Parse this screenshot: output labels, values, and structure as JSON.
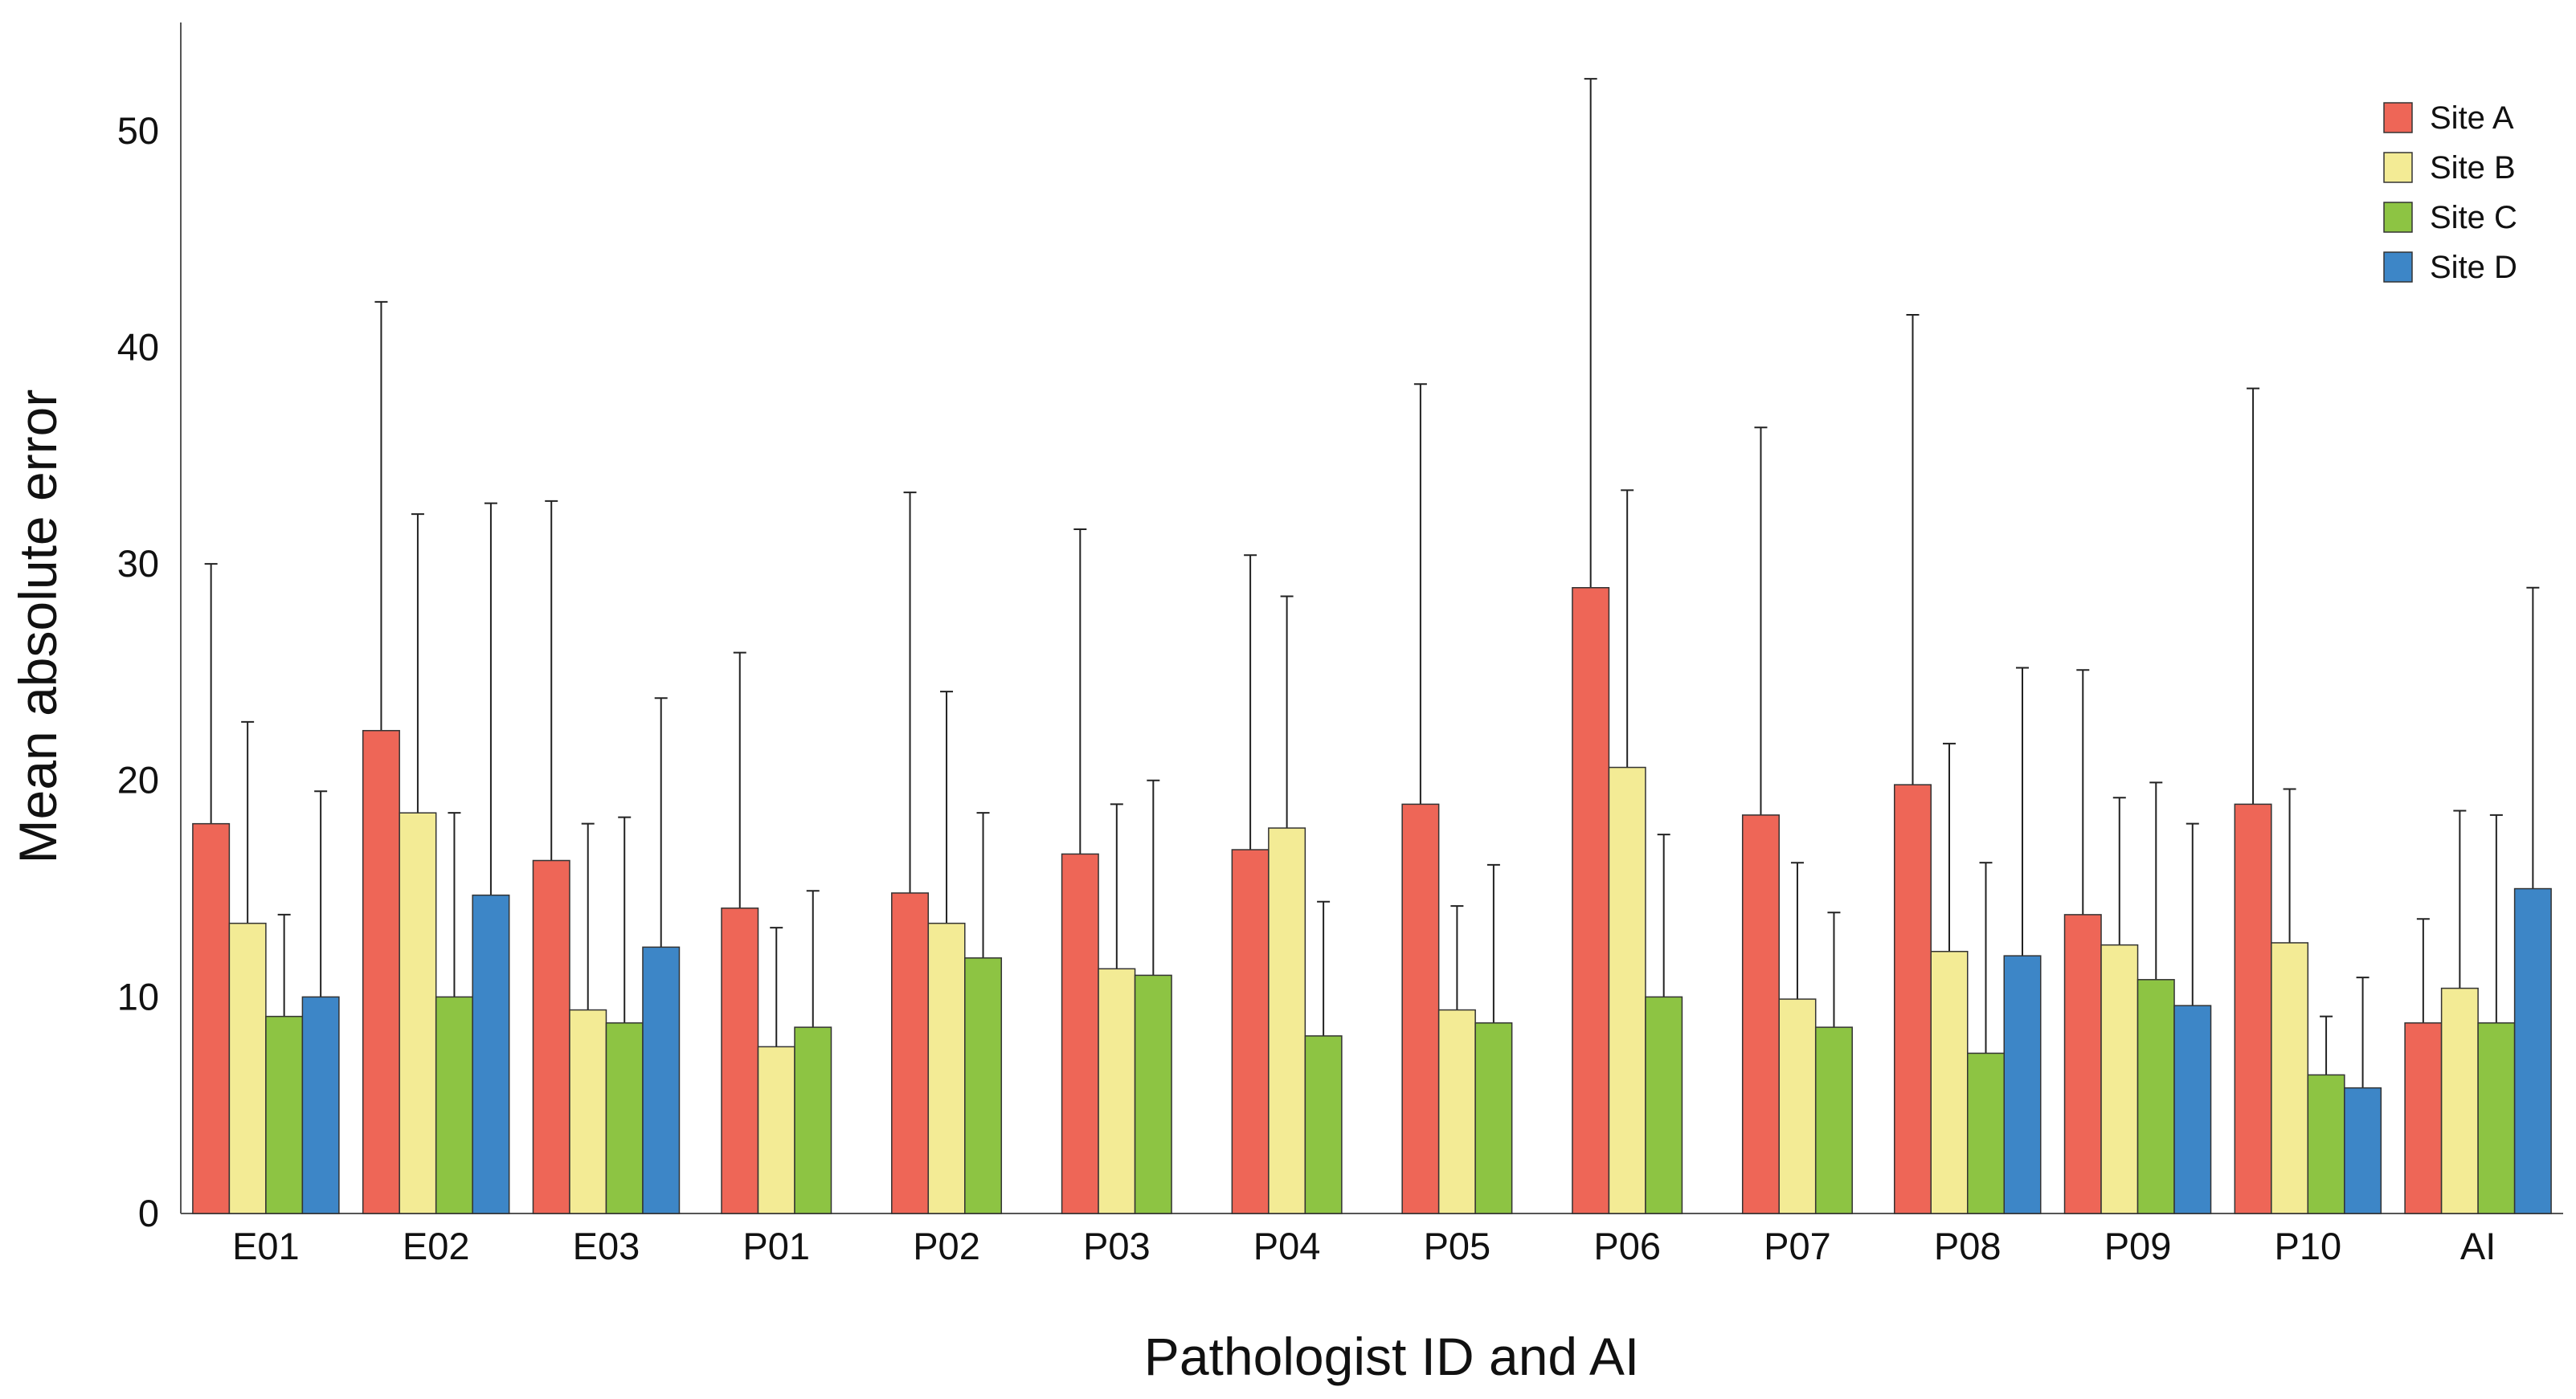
{
  "chart_data": {
    "type": "bar",
    "title": "",
    "xlabel": "Pathologist ID and AI",
    "ylabel": "Mean absolute error",
    "ylim": [
      0,
      55
    ],
    "yticks": [
      0,
      10,
      20,
      30,
      40,
      50
    ],
    "grid": false,
    "legend_position": "top-right",
    "categories": [
      "E01",
      "E02",
      "E03",
      "P01",
      "P02",
      "P03",
      "P04",
      "P05",
      "P06",
      "P07",
      "P08",
      "P09",
      "P10",
      "AI"
    ],
    "series": [
      {
        "name": "Site A",
        "color": "#ee6657",
        "values": [
          18.0,
          22.3,
          16.3,
          14.1,
          14.8,
          16.6,
          16.8,
          18.9,
          28.9,
          18.4,
          19.8,
          13.8,
          18.9,
          8.8
        ],
        "error_upper": [
          30.0,
          42.1,
          32.9,
          25.9,
          33.3,
          31.6,
          30.4,
          38.3,
          52.4,
          36.3,
          41.5,
          25.1,
          38.1,
          13.6
        ]
      },
      {
        "name": "Site B",
        "color": "#f3eb95",
        "values": [
          13.4,
          18.5,
          9.4,
          7.7,
          13.4,
          11.3,
          17.8,
          9.4,
          20.6,
          9.9,
          12.1,
          12.4,
          12.5,
          10.4
        ],
        "error_upper": [
          22.7,
          32.3,
          18.0,
          13.2,
          24.1,
          18.9,
          28.5,
          14.2,
          33.4,
          16.2,
          21.7,
          19.2,
          19.6,
          18.6
        ]
      },
      {
        "name": "Site C",
        "color": "#8dc443",
        "values": [
          9.1,
          10.0,
          8.8,
          8.6,
          11.8,
          11.0,
          8.2,
          8.8,
          10.0,
          8.6,
          7.4,
          10.8,
          6.4,
          8.8
        ],
        "error_upper": [
          13.8,
          18.5,
          18.3,
          14.9,
          18.5,
          20.0,
          14.4,
          16.1,
          17.5,
          13.9,
          16.2,
          19.9,
          9.1,
          18.4
        ]
      },
      {
        "name": "Site D",
        "color": "#3d86c7",
        "values": [
          10.0,
          14.7,
          12.3,
          null,
          null,
          null,
          null,
          null,
          null,
          null,
          11.9,
          9.6,
          5.8,
          15.0
        ],
        "error_upper": [
          19.5,
          32.8,
          23.8,
          null,
          null,
          null,
          null,
          null,
          null,
          null,
          25.2,
          18.0,
          10.9,
          28.9
        ]
      }
    ]
  }
}
